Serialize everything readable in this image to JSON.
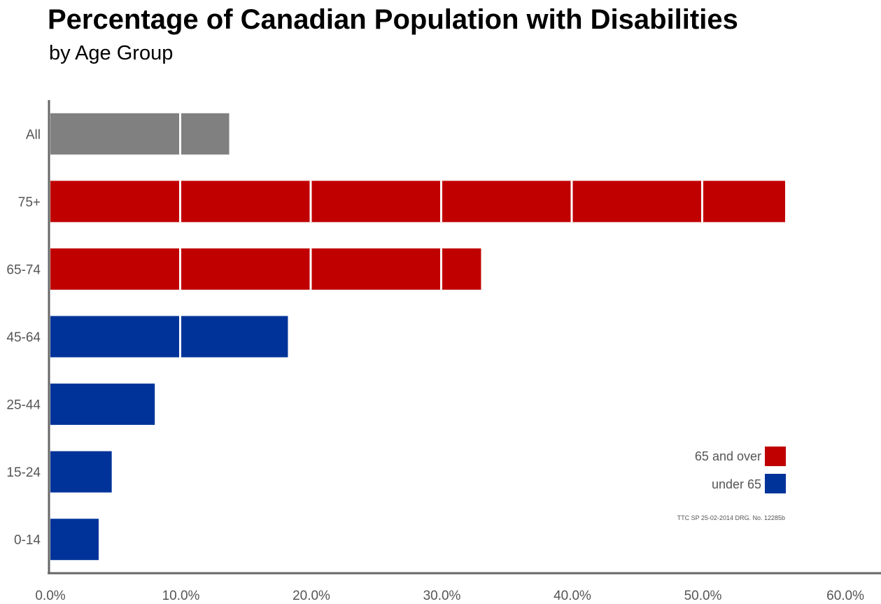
{
  "chart_data": {
    "type": "bar",
    "orientation": "horizontal",
    "title": "Percentage of Canadian Population with Disabilities",
    "subtitle": "by Age Group",
    "categories": [
      "All",
      "75+",
      "65-74",
      "45-64",
      "25-44",
      "15-24",
      "0-14"
    ],
    "values": [
      13.7,
      56.3,
      33.0,
      18.2,
      8.0,
      4.7,
      3.7
    ],
    "groups": [
      "all",
      "65 and over",
      "65 and over",
      "under 65",
      "under 65",
      "under 65",
      "under 65"
    ],
    "xlim": [
      0,
      60
    ],
    "xticks": [
      "0.0%",
      "10.0%",
      "20.0%",
      "30.0%",
      "40.0%",
      "50.0%",
      "60.0%"
    ],
    "grid": false,
    "legend": {
      "position": "bottom-right",
      "entries": [
        {
          "label": "65 and over",
          "color": "#c00000"
        },
        {
          "label": "under 65",
          "color": "#003399"
        }
      ]
    },
    "colors": {
      "all": "#808080",
      "65 and over": "#c00000",
      "under 65": "#003399"
    },
    "credit": "TTC SP 25-02-2014 DRG. No. 12285b"
  }
}
